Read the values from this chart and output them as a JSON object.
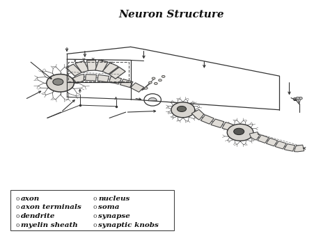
{
  "title": "Neuron Structure",
  "title_fontsize": 11,
  "bg_color": "#ffffff",
  "draw_color": "#333333",
  "soma_color": "#cccccc",
  "myelin_color": "#dddddd",
  "legend_items_col1": [
    "axon",
    "axon terminals",
    "dendrite",
    "myelin sheath"
  ],
  "legend_items_col2": [
    "nucleus",
    "soma",
    "synapse",
    "synaptic knobs"
  ],
  "legend_fontsize": 7.5,
  "xlim": [
    0,
    10
  ],
  "ylim": [
    0,
    10
  ],
  "figsize": [
    4.74,
    3.39
  ],
  "dpi": 100
}
